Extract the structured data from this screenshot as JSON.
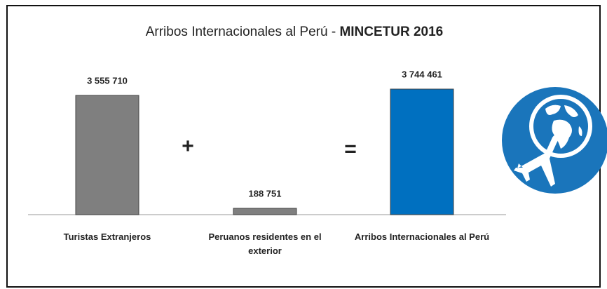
{
  "chart_data": {
    "type": "bar",
    "title": "Arribos Internacionales al Perú -",
    "title_emphasis": "MINCETUR 2016",
    "categories": [
      "Turistas Extranjeros",
      "Peruanos residentes en el exterior",
      "Arribos Internacionales al Perú"
    ],
    "values": [
      3555710,
      188751,
      3744461
    ],
    "value_labels": [
      "3 555 710",
      "188 751",
      "3 744 461"
    ],
    "colors": [
      "#7f7f7f",
      "#7f7f7f",
      "#0070c0"
    ],
    "annotations": [
      "+",
      "="
    ]
  }
}
